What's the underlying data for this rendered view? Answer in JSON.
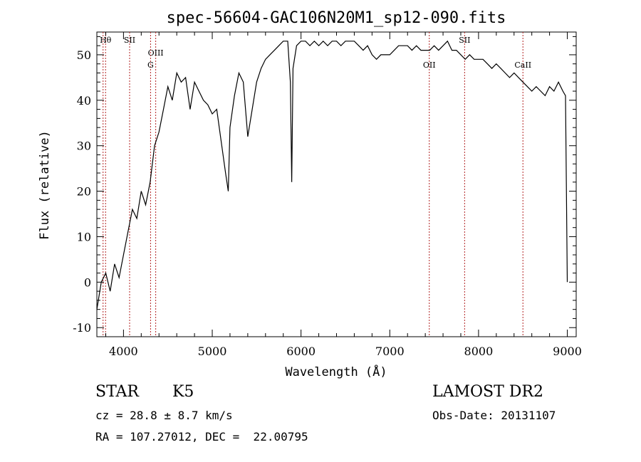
{
  "chart_data": {
    "type": "line",
    "title": "spec-56604-GAC106N20M1_sp12-090.fits",
    "xlabel": "Wavelength (Å)",
    "ylabel": "Flux (relative)",
    "xlim": [
      3700,
      9100
    ],
    "ylim": [
      -12,
      55
    ],
    "xticks": [
      4000,
      5000,
      6000,
      7000,
      8000,
      9000
    ],
    "yticks": [
      -10,
      0,
      10,
      20,
      30,
      40,
      50
    ],
    "grid": false,
    "line_color": "#000000",
    "marker_color": "#b22222",
    "lines": [
      {
        "label": "Hθ",
        "wavelength": 3798
      },
      {
        "label": "",
        "wavelength": 3770
      },
      {
        "label": "SII",
        "wavelength": 4069
      },
      {
        "label": "OIII",
        "wavelength": 4363
      },
      {
        "label": "G",
        "wavelength": 4305
      },
      {
        "label": "OII",
        "wavelength": 7445
      },
      {
        "label": "SII",
        "wavelength": 7843
      },
      {
        "label": "CaII",
        "wavelength": 8500
      }
    ],
    "series": [
      {
        "x": [
          3700,
          3750,
          3800,
          3850,
          3900,
          3950,
          4000,
          4050,
          4100,
          4150,
          4200,
          4250,
          4300,
          4350,
          4400,
          4450,
          4500,
          4550,
          4600,
          4650,
          4700,
          4750,
          4800,
          4850,
          4900,
          4950,
          5000,
          5050,
          5100,
          5150,
          5180,
          5200,
          5250,
          5300,
          5350,
          5400,
          5450,
          5500,
          5550,
          5600,
          5650,
          5700,
          5750,
          5800,
          5850,
          5880,
          5895,
          5910,
          5950,
          6000,
          6050,
          6100,
          6150,
          6200,
          6250,
          6300,
          6350,
          6400,
          6450,
          6500,
          6550,
          6600,
          6650,
          6700,
          6750,
          6800,
          6850,
          6900,
          6950,
          7000,
          7050,
          7100,
          7150,
          7200,
          7250,
          7300,
          7350,
          7400,
          7450,
          7500,
          7550,
          7600,
          7650,
          7700,
          7750,
          7800,
          7850,
          7900,
          7950,
          8000,
          8050,
          8100,
          8150,
          8200,
          8250,
          8300,
          8350,
          8400,
          8450,
          8500,
          8550,
          8600,
          8650,
          8700,
          8750,
          8800,
          8850,
          8900,
          8950,
          8980,
          9000
        ],
        "y": [
          -6,
          0,
          2,
          -2,
          4,
          1,
          6,
          11,
          16,
          14,
          20,
          17,
          22,
          30,
          33,
          38,
          43,
          40,
          46,
          44,
          45,
          38,
          44,
          42,
          40,
          39,
          37,
          38,
          31,
          24,
          20,
          34,
          41,
          46,
          44,
          32,
          38,
          44,
          47,
          49,
          50,
          51,
          52,
          53,
          53,
          44,
          22,
          47,
          52,
          53,
          53,
          52,
          53,
          52,
          53,
          52,
          53,
          53,
          52,
          53,
          53,
          53,
          52,
          51,
          52,
          50,
          49,
          50,
          50,
          50,
          51,
          52,
          52,
          52,
          51,
          52,
          51,
          51,
          51,
          52,
          51,
          52,
          53,
          51,
          51,
          50,
          49,
          50,
          49,
          49,
          49,
          48,
          47,
          48,
          47,
          46,
          45,
          46,
          45,
          44,
          43,
          42,
          43,
          42,
          41,
          43,
          42,
          44,
          42,
          41,
          0
        ]
      }
    ]
  },
  "info": {
    "object_class": "STAR",
    "subclass": "K5",
    "survey": "LAMOST DR2",
    "cz": "cz = 28.8 ± 8.7 km/s",
    "obs_date": "Obs-Date: 20131107",
    "coords": "RA = 107.27012, DEC =  22.00795"
  }
}
